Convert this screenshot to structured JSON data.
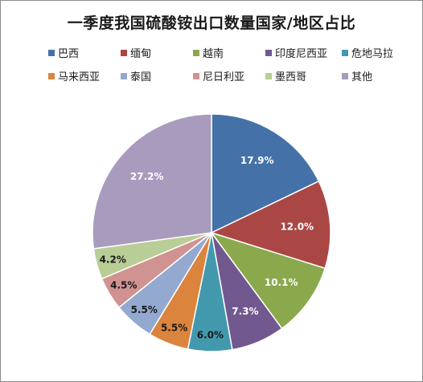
{
  "chart_data": {
    "type": "pie",
    "title": "一季度我国硫酸铵出口数量国家/地区占比",
    "legend_position": "top",
    "slices": [
      {
        "name": "巴西",
        "value": 17.9,
        "label": "17.9%",
        "color": "#4472a8"
      },
      {
        "name": "缅甸",
        "value": 12.0,
        "label": "12.0%",
        "color": "#aa4744"
      },
      {
        "name": "越南",
        "value": 10.1,
        "label": "10.1%",
        "color": "#8aa84c"
      },
      {
        "name": "印度尼西亚",
        "value": 7.3,
        "label": "7.3%",
        "color": "#71588f"
      },
      {
        "name": "危地马拉",
        "value": 6.0,
        "label": "6.0%",
        "color": "#4299ae"
      },
      {
        "name": "马来西亚",
        "value": 5.5,
        "label": "5.5%",
        "color": "#db843d"
      },
      {
        "name": "泰国",
        "value": 5.5,
        "label": "5.5%",
        "color": "#93a9d0"
      },
      {
        "name": "尼日利亚",
        "value": 4.5,
        "label": "4.5%",
        "color": "#d09392"
      },
      {
        "name": "墨西哥",
        "value": 4.2,
        "label": "4.2%",
        "color": "#b9cd96"
      },
      {
        "name": "其他",
        "value": 27.2,
        "label": "27.2%",
        "color": "#a99bbd"
      }
    ]
  },
  "label_colors": {
    "inside": "#ffffff",
    "outside": "#1a1a1a"
  }
}
